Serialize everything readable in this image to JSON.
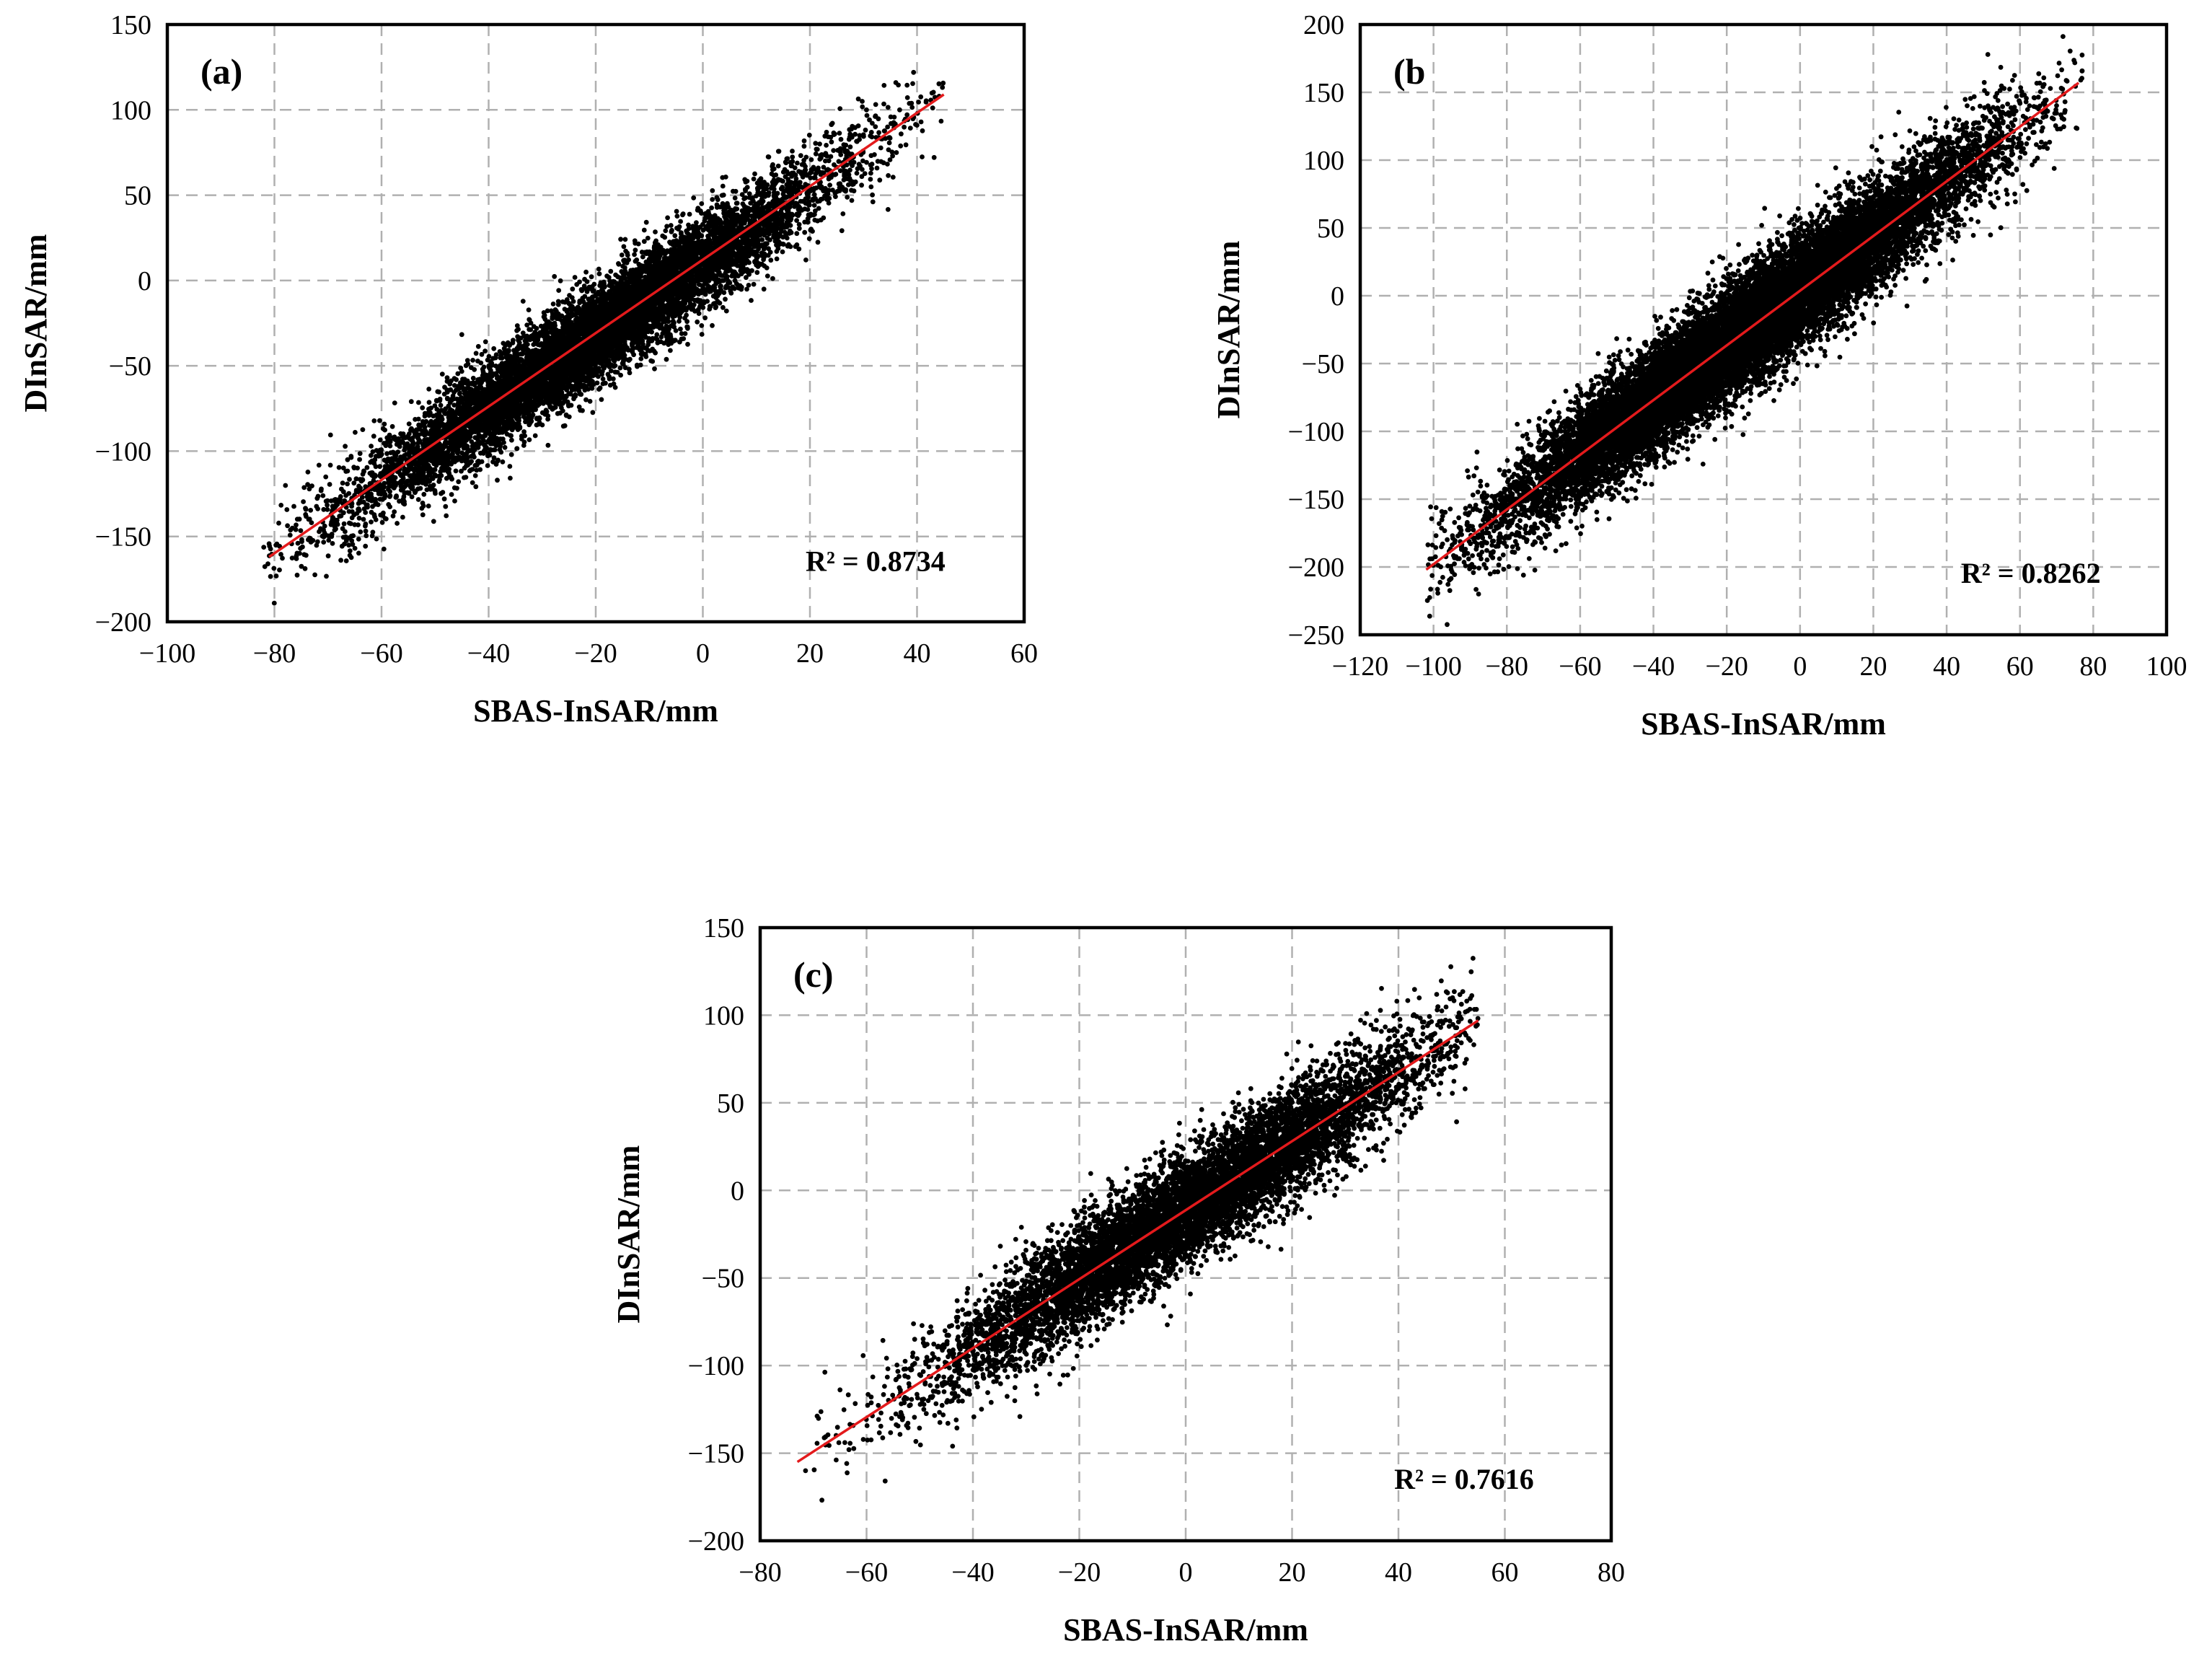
{
  "chart_data": [
    {
      "type": "scatter",
      "panel_label": "(a)",
      "xlabel": "SBAS-InSAR/mm",
      "ylabel": "DInSAR/mm",
      "xlim": [
        -100,
        60
      ],
      "ylim": [
        -200,
        150
      ],
      "xticks": [
        -100,
        -80,
        -60,
        -40,
        -20,
        0,
        20,
        40,
        60
      ],
      "yticks": [
        -200,
        -150,
        -100,
        -50,
        0,
        50,
        100,
        150
      ],
      "grid": true,
      "r2_text": "R² = 0.8734",
      "r2": 0.8734,
      "fit_line": {
        "x": [
          -81,
          45
        ],
        "y": [
          -162,
          109
        ]
      },
      "points": {
        "x_range": [
          -82,
          45
        ],
        "center": [
          -20,
          -35
        ],
        "slope": 2.15,
        "intercept": 11,
        "spread": 14,
        "approx_count": 9000
      }
    },
    {
      "type": "scatter",
      "panel_label": "(b",
      "xlabel": "SBAS-InSAR/mm",
      "ylabel": "DInSAR/mm",
      "xlim": [
        -120,
        100
      ],
      "ylim": [
        -250,
        200
      ],
      "xticks": [
        -120,
        -100,
        -80,
        -60,
        -40,
        -20,
        0,
        20,
        40,
        60,
        80,
        100
      ],
      "yticks": [
        -250,
        -200,
        -150,
        -100,
        -50,
        0,
        50,
        100,
        150,
        200
      ],
      "grid": true,
      "r2_text": "R² = 0.8262",
      "r2": 0.8262,
      "fit_line": {
        "x": [
          -102,
          76
        ],
        "y": [
          -202,
          157
        ]
      },
      "points": {
        "x_range": [
          -102,
          77
        ],
        "center": [
          -15,
          -30
        ],
        "slope": 2.02,
        "intercept": 4,
        "spread": 20,
        "approx_count": 16000
      }
    },
    {
      "type": "scatter",
      "panel_label": "(c)",
      "xlabel": "SBAS-InSAR/mm",
      "ylabel": "DInSAR/mm",
      "xlim": [
        -80,
        80
      ],
      "ylim": [
        -200,
        150
      ],
      "xticks": [
        -80,
        -60,
        -40,
        -20,
        0,
        20,
        40,
        60,
        80
      ],
      "yticks": [
        -200,
        -150,
        -100,
        -50,
        0,
        50,
        100,
        150
      ],
      "grid": true,
      "r2_text": "R² = 0.7616",
      "r2": 0.7616,
      "fit_line": {
        "x": [
          -73,
          55
        ],
        "y": [
          -155,
          97
        ]
      },
      "points": {
        "x_range": [
          -74,
          55
        ],
        "center": [
          0,
          -10
        ],
        "slope": 1.97,
        "intercept": -11,
        "spread": 16,
        "approx_count": 8000
      }
    }
  ],
  "colors": {
    "points": "#000000",
    "fit_line": "#e31a1c",
    "grid": "#b0b0b0",
    "frame": "#000000"
  }
}
